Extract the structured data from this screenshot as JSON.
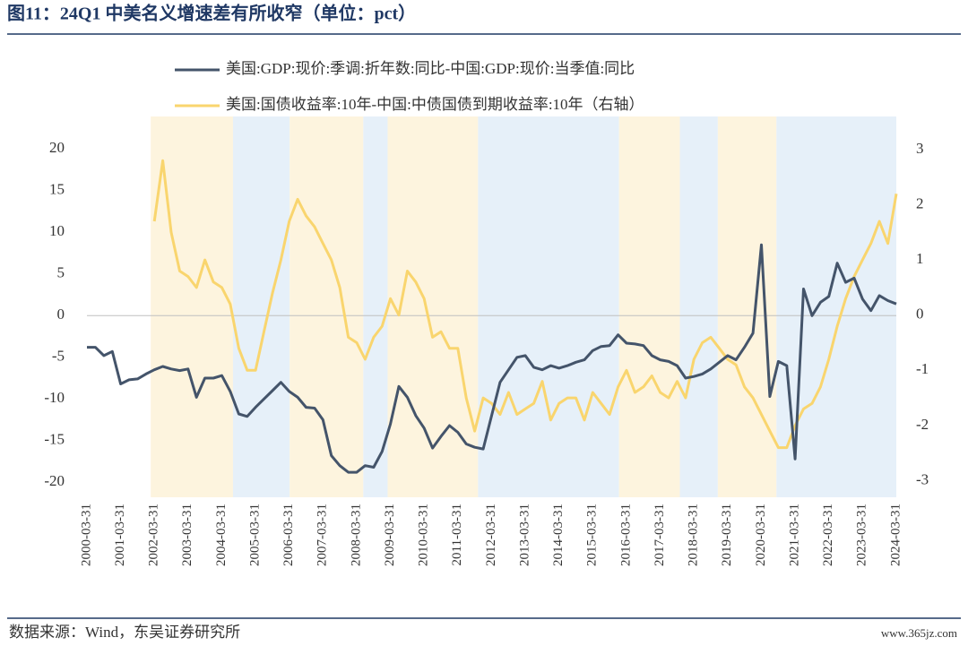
{
  "chart_data": {
    "type": "line",
    "title": "图11：24Q1 中美名义增速差有所收窄（单位：pct）",
    "source": "数据来源：Wind，东吴证券研究所",
    "watermark": "www.365jz.com",
    "xlim": [
      "2000-03-31",
      "2024-03-31"
    ],
    "xticks": [
      "2000-03-31",
      "2001-03-31",
      "2002-03-31",
      "2003-03-31",
      "2004-03-31",
      "2005-03-31",
      "2006-03-31",
      "2007-03-31",
      "2008-03-31",
      "2009-03-31",
      "2010-03-31",
      "2011-03-31",
      "2012-03-31",
      "2013-03-31",
      "2014-03-31",
      "2015-03-31",
      "2016-03-31",
      "2017-03-31",
      "2018-03-31",
      "2019-03-31",
      "2020-03-31",
      "2021-03-31",
      "2022-03-31",
      "2023-03-31",
      "2024-03-31"
    ],
    "ylim": [
      -21.8,
      23.9
    ],
    "yticks": [
      -20,
      -15,
      -10,
      -5,
      0,
      5,
      10,
      15,
      20
    ],
    "y2lim": [
      -3.3,
      3.6
    ],
    "y2ticks": [
      -3,
      -2,
      -1,
      0,
      1,
      2,
      3
    ],
    "bands": [
      {
        "start": "2002-02-20",
        "end": "2004-07-30",
        "color": "#fdf4de"
      },
      {
        "start": "2004-07-30",
        "end": "2006-04-05",
        "color": "#e6f0f9"
      },
      {
        "start": "2006-04-05",
        "end": "2008-06-10",
        "color": "#fdf4de"
      },
      {
        "start": "2008-06-10",
        "end": "2009-03-01",
        "color": "#e6f0f9"
      },
      {
        "start": "2009-03-01",
        "end": "2011-11-05",
        "color": "#fdf4de"
      },
      {
        "start": "2011-11-05",
        "end": "2016-01-10",
        "color": "#e6f0f9"
      },
      {
        "start": "2016-01-10",
        "end": "2017-10-30",
        "color": "#fdf4de"
      },
      {
        "start": "2017-10-30",
        "end": "2018-12-15",
        "color": "#e6f0f9"
      },
      {
        "start": "2018-12-15",
        "end": "2020-09-10",
        "color": "#fdf4de"
      },
      {
        "start": "2020-09-10",
        "end": "2024-03-31",
        "color": "#e6f0f9"
      }
    ],
    "series": [
      {
        "name": "美国:GDP:现价:季调:折年数:同比-中国:GDP:现价:当季值:同比",
        "color": "#44546a",
        "x": [
          "2000-03-31",
          "2000-06-30",
          "2000-09-30",
          "2000-12-31",
          "2001-03-31",
          "2001-06-30",
          "2001-09-30",
          "2001-12-31",
          "2002-03-31",
          "2002-06-30",
          "2002-09-30",
          "2002-12-31",
          "2003-03-31",
          "2003-06-30",
          "2003-09-30",
          "2003-12-31",
          "2004-03-31",
          "2004-06-30",
          "2004-09-30",
          "2004-12-31",
          "2005-03-31",
          "2005-06-30",
          "2005-09-30",
          "2005-12-31",
          "2006-03-31",
          "2006-06-30",
          "2006-09-30",
          "2006-12-31",
          "2007-03-31",
          "2007-06-30",
          "2007-09-30",
          "2007-12-31",
          "2008-03-31",
          "2008-06-30",
          "2008-09-30",
          "2008-12-31",
          "2009-03-31",
          "2009-06-30",
          "2009-09-30",
          "2009-12-31",
          "2010-03-31",
          "2010-06-30",
          "2010-09-30",
          "2010-12-31",
          "2011-03-31",
          "2011-06-30",
          "2011-09-30",
          "2011-12-31",
          "2012-03-31",
          "2012-06-30",
          "2012-09-30",
          "2012-12-31",
          "2013-03-31",
          "2013-06-30",
          "2013-09-30",
          "2013-12-31",
          "2014-03-31",
          "2014-06-30",
          "2014-09-30",
          "2014-12-31",
          "2015-03-31",
          "2015-06-30",
          "2015-09-30",
          "2015-12-31",
          "2016-03-31",
          "2016-06-30",
          "2016-09-30",
          "2016-12-31",
          "2017-03-31",
          "2017-06-30",
          "2017-09-30",
          "2017-12-31",
          "2018-03-31",
          "2018-06-30",
          "2018-09-30",
          "2018-12-31",
          "2019-03-31",
          "2019-06-30",
          "2019-09-30",
          "2019-12-31",
          "2020-03-31",
          "2020-06-30",
          "2020-09-30",
          "2020-12-31",
          "2021-03-31",
          "2021-06-30",
          "2021-09-30",
          "2021-12-31",
          "2022-03-31",
          "2022-06-30",
          "2022-09-30",
          "2022-12-31",
          "2023-03-31",
          "2023-06-30",
          "2023-09-30",
          "2023-12-31",
          "2024-03-31"
        ],
        "values": [
          -3.8,
          -3.8,
          -4.8,
          -4.3,
          -8.2,
          -7.7,
          -7.6,
          -7.0,
          -6.5,
          -6.1,
          -6.4,
          -6.6,
          -6.4,
          -9.8,
          -7.5,
          -7.5,
          -7.2,
          -9.1,
          -11.8,
          -12.1,
          -11.0,
          -10.0,
          -9.0,
          -8.0,
          -9.1,
          -9.8,
          -11.0,
          -11.1,
          -12.5,
          -16.8,
          -18.0,
          -18.8,
          -18.8,
          -18.0,
          -18.2,
          -16.3,
          -13.0,
          -8.5,
          -9.8,
          -12.0,
          -13.5,
          -15.9,
          -14.5,
          -13.2,
          -14.0,
          -15.4,
          -15.8,
          -16.0,
          -12.0,
          -8.0,
          -6.5,
          -5.0,
          -4.8,
          -6.2,
          -6.5,
          -6.0,
          -6.3,
          -6.0,
          -5.6,
          -5.3,
          -4.2,
          -3.7,
          -3.6,
          -2.3,
          -3.3,
          -3.4,
          -3.6,
          -4.8,
          -5.3,
          -5.5,
          -6.0,
          -7.5,
          -7.3,
          -7.0,
          -6.4,
          -5.6,
          -4.8,
          -5.3,
          -3.8,
          -2.1,
          8.5,
          -9.7,
          -5.5,
          -6.0,
          -17.2,
          3.2,
          0.0,
          1.6,
          2.3,
          6.3,
          4.0,
          4.5,
          2.0,
          0.6,
          2.4,
          1.8,
          1.4
        ]
      },
      {
        "name": "美国:国债收益率:10年-中国:中债国债到期收益率:10年（右轴）",
        "color": "#f9d56e",
        "axis": "y2",
        "x": [
          "2002-03-31",
          "2002-06-30",
          "2002-09-30",
          "2002-12-31",
          "2003-03-31",
          "2003-06-30",
          "2003-09-30",
          "2003-12-31",
          "2004-03-31",
          "2004-06-30",
          "2004-09-30",
          "2004-12-31",
          "2005-03-31",
          "2005-06-30",
          "2005-09-30",
          "2005-12-31",
          "2006-03-31",
          "2006-06-30",
          "2006-09-30",
          "2006-12-31",
          "2007-03-31",
          "2007-06-30",
          "2007-09-30",
          "2007-12-31",
          "2008-03-31",
          "2008-06-30",
          "2008-09-30",
          "2008-12-31",
          "2009-03-31",
          "2009-06-30",
          "2009-09-30",
          "2009-12-31",
          "2010-03-31",
          "2010-06-30",
          "2010-09-30",
          "2010-12-31",
          "2011-03-31",
          "2011-06-30",
          "2011-09-30",
          "2011-12-31",
          "2012-03-31",
          "2012-06-30",
          "2012-09-30",
          "2012-12-31",
          "2013-03-31",
          "2013-06-30",
          "2013-09-30",
          "2013-12-31",
          "2014-03-31",
          "2014-06-30",
          "2014-09-30",
          "2014-12-31",
          "2015-03-31",
          "2015-06-30",
          "2015-09-30",
          "2015-12-31",
          "2016-03-31",
          "2016-06-30",
          "2016-09-30",
          "2016-12-31",
          "2017-03-31",
          "2017-06-30",
          "2017-09-30",
          "2017-12-31",
          "2018-03-31",
          "2018-06-30",
          "2018-09-30",
          "2018-12-31",
          "2019-03-31",
          "2019-06-30",
          "2019-09-30",
          "2019-12-31",
          "2020-03-31",
          "2020-06-30",
          "2020-09-30",
          "2020-12-31",
          "2021-03-31",
          "2021-06-30",
          "2021-09-30",
          "2021-12-31",
          "2022-03-31",
          "2022-06-30",
          "2022-09-30",
          "2022-12-31",
          "2023-03-31",
          "2023-06-30",
          "2023-09-30",
          "2023-12-31",
          "2024-03-31"
        ],
        "values": [
          1.7,
          2.8,
          1.5,
          0.8,
          0.7,
          0.5,
          1.0,
          0.6,
          0.5,
          0.2,
          -0.6,
          -1.0,
          -1.0,
          -0.3,
          0.4,
          1.0,
          1.7,
          2.1,
          1.8,
          1.6,
          1.3,
          1.0,
          0.5,
          -0.4,
          -0.5,
          -0.8,
          -0.4,
          -0.2,
          0.3,
          0.0,
          0.8,
          0.6,
          0.3,
          -0.4,
          -0.3,
          -0.6,
          -0.6,
          -1.5,
          -2.1,
          -1.5,
          -1.6,
          -1.8,
          -1.4,
          -1.8,
          -1.7,
          -1.6,
          -1.2,
          -1.9,
          -1.6,
          -1.5,
          -1.5,
          -1.9,
          -1.4,
          -1.6,
          -1.8,
          -1.3,
          -1.0,
          -1.4,
          -1.3,
          -1.1,
          -1.4,
          -1.5,
          -1.2,
          -1.5,
          -0.8,
          -0.5,
          -0.4,
          -0.6,
          -0.8,
          -0.9,
          -1.3,
          -1.5,
          -1.8,
          -2.1,
          -2.4,
          -2.4,
          -2.0,
          -1.7,
          -1.6,
          -1.3,
          -0.8,
          -0.2,
          0.3,
          0.7,
          1.0,
          1.3,
          1.7,
          1.3,
          2.2
        ]
      }
    ]
  }
}
